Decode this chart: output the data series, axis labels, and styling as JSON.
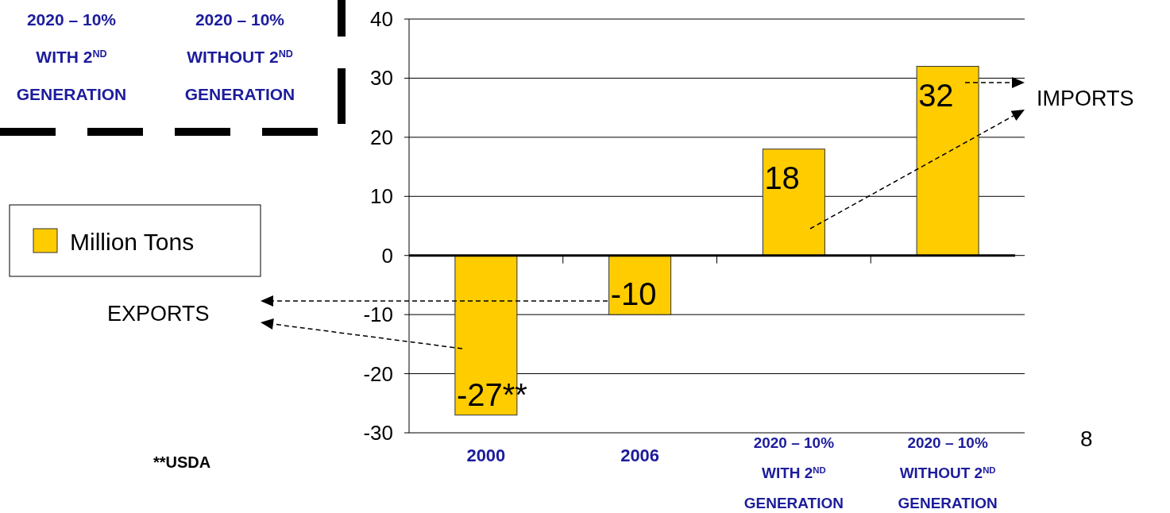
{
  "chart_data": {
    "type": "bar",
    "categories": [
      "2000",
      "2006",
      "2020 – 10% WITH 2$^{ND}$ GENERATION",
      "2020 – 10% WITHOUT  2$^{ND}$ GENERATION"
    ],
    "series": [
      {
        "name": "Million Tons",
        "color": "#ffcc00",
        "values": [
          -27,
          -10,
          18,
          32
        ],
        "value_labels": [
          "-27**",
          "-10",
          "18",
          "32"
        ]
      }
    ],
    "ylim": [
      -30,
      40
    ],
    "yticks": [
      -30,
      -20,
      -10,
      0,
      10,
      20,
      30,
      40
    ],
    "grid": "y",
    "legend": "left",
    "annotations": [
      "2020 – 10% WITH 2$^{ND}$ GENERATION",
      "2020 – 10% WITHOUT  2$^{ND}$ GENERATION",
      "EXPORTS",
      "IMPORTS",
      "**USDA",
      "8"
    ]
  }
}
